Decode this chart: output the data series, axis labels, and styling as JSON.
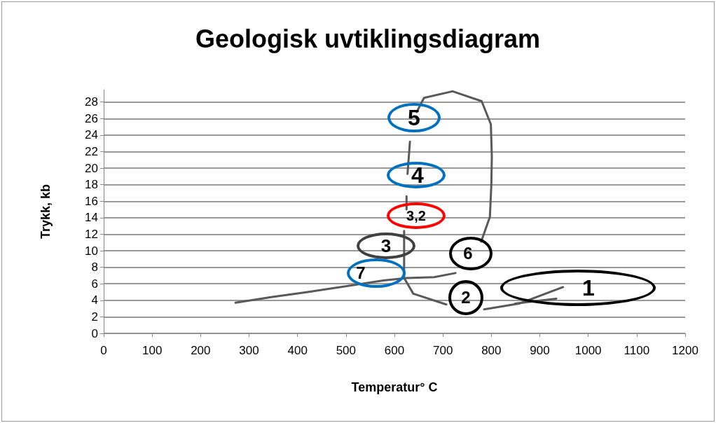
{
  "chart_data": {
    "type": "line",
    "title": "Geologisk uvtiklingsdiagram",
    "xlabel": "Temperatur° C",
    "ylabel": "Trykk, kb",
    "xlim": [
      0,
      1200
    ],
    "xticks": [
      0,
      100,
      200,
      300,
      400,
      500,
      600,
      700,
      800,
      900,
      1000,
      1100,
      1200
    ],
    "ylim": [
      0,
      29.5
    ],
    "yticks": [
      0,
      2,
      4,
      6,
      8,
      10,
      12,
      14,
      16,
      18,
      20,
      22,
      24,
      26,
      28
    ],
    "grid": "y",
    "series": [
      {
        "color": "#595959",
        "x": [
          948,
          857,
          785,
          null,
          707,
          639,
          620,
          620,
          null,
          625,
          625,
          null,
          627,
          632,
          null,
          646,
          661,
          720,
          780,
          799,
          801,
          800,
          797,
          779,
          null,
          726,
          682,
          625,
          577,
          421,
          348,
          272
        ],
        "values": [
          5.6,
          3.6,
          2.9,
          null,
          3.5,
          4.8,
          6.7,
          12.4,
          null,
          15.0,
          16.6,
          null,
          19.3,
          23.2,
          null,
          26.8,
          28.5,
          29.3,
          28.1,
          25.3,
          21.4,
          18.0,
          14.1,
          11.1,
          null,
          7.3,
          6.8,
          6.7,
          6.4,
          5.0,
          4.4,
          3.7
        ]
      },
      {
        "color": "#595959",
        "x": [
          934,
          849
        ],
        "values": [
          4.2,
          3.6
        ]
      }
    ],
    "annotations": [
      "1",
      "2",
      "3",
      "3,2",
      "4",
      "5",
      "6",
      "7"
    ]
  }
}
